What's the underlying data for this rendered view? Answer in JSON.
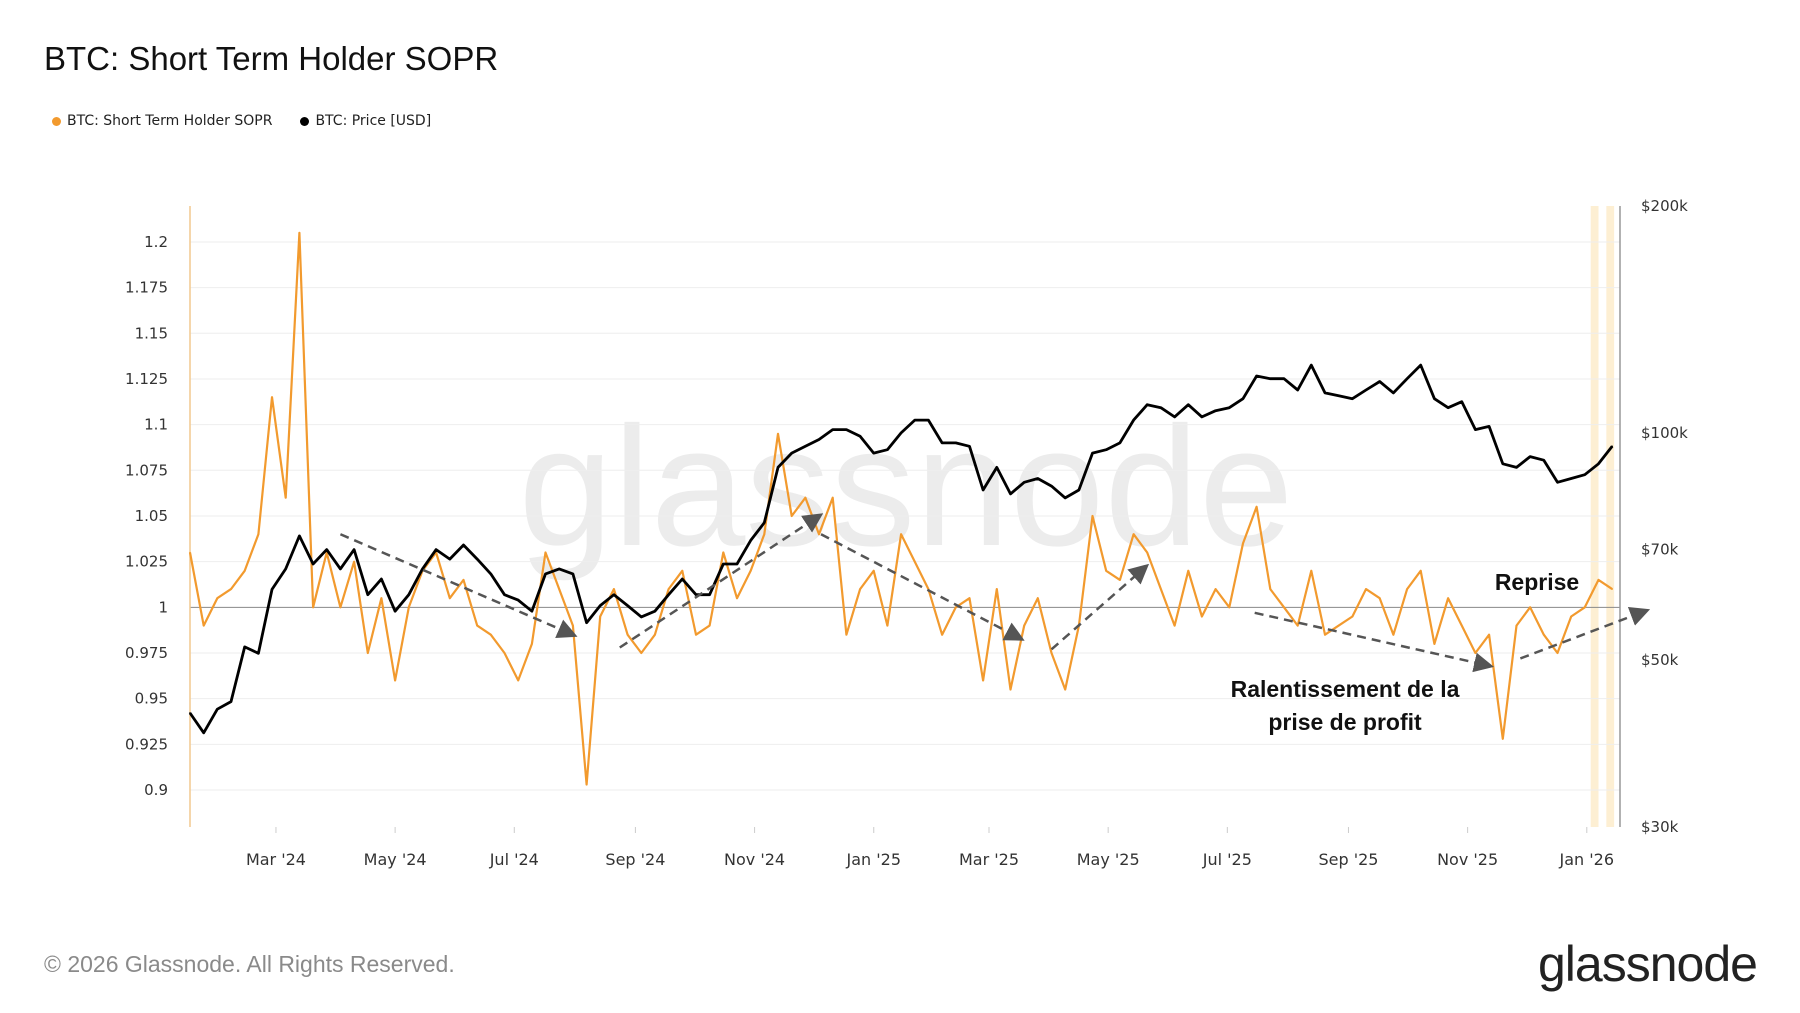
{
  "header": {
    "title": "BTC: Short Term Holder SOPR"
  },
  "legend": [
    {
      "label": "BTC: Short Term Holder SOPR",
      "color": "#f29a2e"
    },
    {
      "label": "BTC: Price [USD]",
      "color": "#000000"
    }
  ],
  "footer": {
    "copyright": "© 2026 Glassnode. All Rights Reserved.",
    "logo": "glassnode"
  },
  "chart_data": {
    "type": "line",
    "title": "BTC: Short Term Holder SOPR",
    "watermark": "glassnode",
    "x_start": "2024-01-17",
    "x_step_days": 7,
    "x_range": [
      "2024-01-17",
      "2026-01-18"
    ],
    "x_ticks": [
      {
        "label": "Mar '24",
        "date": "2024-03-01"
      },
      {
        "label": "May '24",
        "date": "2024-05-01"
      },
      {
        "label": "Jul '24",
        "date": "2024-07-01"
      },
      {
        "label": "Sep '24",
        "date": "2024-09-01"
      },
      {
        "label": "Nov '24",
        "date": "2024-11-01"
      },
      {
        "label": "Jan '25",
        "date": "2025-01-01"
      },
      {
        "label": "Mar '25",
        "date": "2025-03-01"
      },
      {
        "label": "May '25",
        "date": "2025-05-01"
      },
      {
        "label": "Jul '25",
        "date": "2025-07-01"
      },
      {
        "label": "Sep '25",
        "date": "2025-09-01"
      },
      {
        "label": "Nov '25",
        "date": "2025-11-01"
      },
      {
        "label": "Jan '26",
        "date": "2026-01-01"
      }
    ],
    "y_left": {
      "range": [
        0.88,
        1.22
      ],
      "ticks": [
        "0.9",
        "0.925",
        "0.95",
        "0.975",
        "1",
        "1.025",
        "1.05",
        "1.075",
        "1.1",
        "1.125",
        "1.15",
        "1.175",
        "1.2"
      ],
      "reference_line": 1
    },
    "y_right": {
      "scale": "log",
      "range_k": [
        30,
        200
      ],
      "ticks": [
        {
          "label": "$30k",
          "v": 30
        },
        {
          "label": "$50k",
          "v": 50
        },
        {
          "label": "$70k",
          "v": 70
        },
        {
          "label": "$100k",
          "v": 100
        },
        {
          "label": "$200k",
          "v": 200
        }
      ]
    },
    "series": [
      {
        "name": "BTC: Short Term Holder SOPR",
        "axis": "left",
        "color": "#f29a2e",
        "values": [
          1.03,
          0.99,
          1.005,
          1.01,
          1.02,
          1.04,
          1.115,
          1.06,
          1.205,
          1.0,
          1.03,
          1.0,
          1.025,
          0.975,
          1.005,
          0.96,
          1.0,
          1.02,
          1.03,
          1.005,
          1.015,
          0.99,
          0.985,
          0.975,
          0.96,
          0.98,
          1.03,
          1.01,
          0.99,
          0.903,
          0.995,
          1.01,
          0.985,
          0.975,
          0.985,
          1.01,
          1.02,
          0.985,
          0.99,
          1.03,
          1.005,
          1.02,
          1.04,
          1.095,
          1.05,
          1.06,
          1.04,
          1.06,
          0.985,
          1.01,
          1.02,
          0.99,
          1.04,
          1.025,
          1.01,
          0.985,
          1.0,
          1.005,
          0.96,
          1.01,
          0.955,
          0.99,
          1.005,
          0.975,
          0.955,
          0.99,
          1.05,
          1.02,
          1.015,
          1.04,
          1.03,
          1.01,
          0.99,
          1.02,
          0.995,
          1.01,
          1.0,
          1.035,
          1.055,
          1.01,
          1.0,
          0.99,
          1.02,
          0.985,
          0.99,
          0.995,
          1.01,
          1.005,
          0.985,
          1.01,
          1.02,
          0.98,
          1.005,
          0.99,
          0.975,
          0.985,
          0.928,
          0.99,
          1.0,
          0.985,
          0.975,
          0.995,
          1.0,
          1.015,
          1.01
        ]
      },
      {
        "name": "BTC: Price [USD]",
        "axis": "right",
        "unit": "k USD",
        "color": "#000000",
        "values": [
          42.5,
          40,
          43,
          44,
          52,
          51,
          62,
          66,
          73,
          67,
          70,
          66,
          70,
          61,
          64,
          58,
          61,
          66,
          70,
          68,
          71,
          68,
          65,
          61,
          60,
          58,
          65,
          66,
          65,
          56,
          59,
          61,
          59,
          57,
          58,
          61,
          64,
          61,
          61,
          67,
          67,
          72,
          76,
          90,
          94,
          96,
          98,
          101,
          101,
          99,
          94,
          95,
          100,
          104,
          104,
          97,
          97,
          96,
          84,
          90,
          83,
          86,
          87,
          85,
          82,
          84,
          94,
          95,
          97,
          104,
          109,
          108,
          105,
          109,
          105,
          107,
          108,
          111,
          119,
          118,
          118,
          114,
          123,
          113,
          112,
          111,
          114,
          117,
          113,
          118,
          123,
          111,
          108,
          110,
          101,
          102,
          91,
          90,
          93,
          92,
          86,
          87,
          88,
          91,
          96
        ]
      }
    ],
    "highlight_bands": [
      [
        "2026-01-03",
        "2026-01-07"
      ],
      [
        "2026-01-11",
        "2026-01-15"
      ]
    ],
    "annotations": [
      {
        "text": "Reprise"
      },
      {
        "text_lines": [
          "Ralentissement de la",
          "prise de profit"
        ]
      }
    ],
    "trend_arrows": [
      {
        "from": [
          "2024-04-03",
          1.04
        ],
        "to": [
          "2024-07-31",
          0.985
        ]
      },
      {
        "from": [
          "2024-08-24",
          0.978
        ],
        "to": [
          "2024-12-04",
          1.05
        ]
      },
      {
        "from": [
          "2024-12-05",
          1.04
        ],
        "to": [
          "2025-03-17",
          0.983
        ]
      },
      {
        "from": [
          "2025-04-02",
          0.977
        ],
        "to": [
          "2025-05-20",
          1.022
        ]
      },
      {
        "from": [
          "2025-07-15",
          0.997
        ],
        "to": [
          "2025-11-12",
          0.968
        ]
      },
      {
        "from": [
          "2025-11-28",
          0.972
        ],
        "to": [
          "2026-01-31",
          0.998
        ]
      }
    ]
  }
}
